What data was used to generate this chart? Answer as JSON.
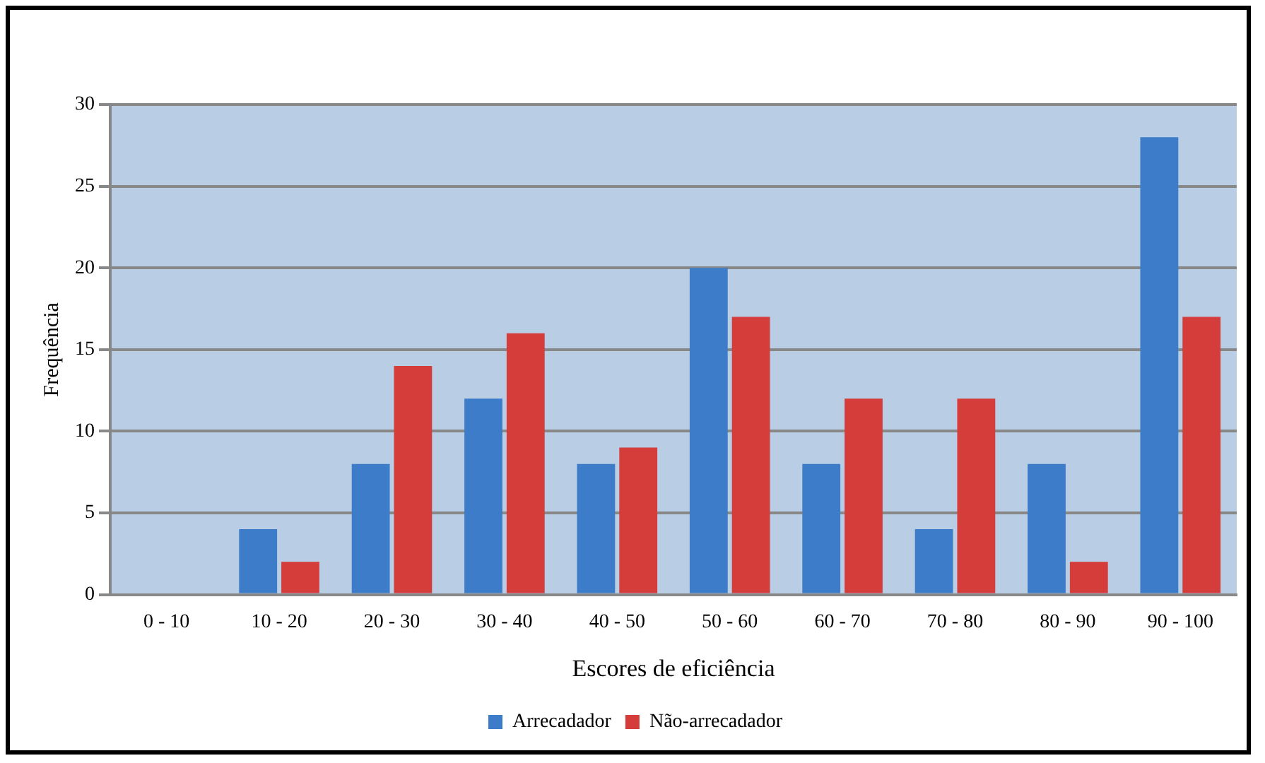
{
  "chart_data": {
    "type": "bar",
    "xlabel": "Escores de eficiência",
    "ylabel": "Frequência",
    "categories": [
      "0 - 10",
      "10 - 20",
      "20 - 30",
      "30 - 40",
      "40 - 50",
      "50 - 60",
      "60 - 70",
      "70 - 80",
      "80 - 90",
      "90 - 100"
    ],
    "series": [
      {
        "name": "Arrecadador",
        "color": "#3d7cc9",
        "values": [
          0,
          4,
          8,
          12,
          8,
          20,
          8,
          4,
          8,
          28
        ]
      },
      {
        "name": "Não-arrecadador",
        "color": "#d43d3a",
        "values": [
          0,
          2,
          14,
          16,
          9,
          17,
          12,
          12,
          2,
          17
        ]
      }
    ],
    "ylim": [
      0,
      30
    ],
    "yticks": [
      0,
      5,
      10,
      15,
      20,
      25,
      30
    ],
    "grid": "y",
    "legend": "bottom"
  }
}
